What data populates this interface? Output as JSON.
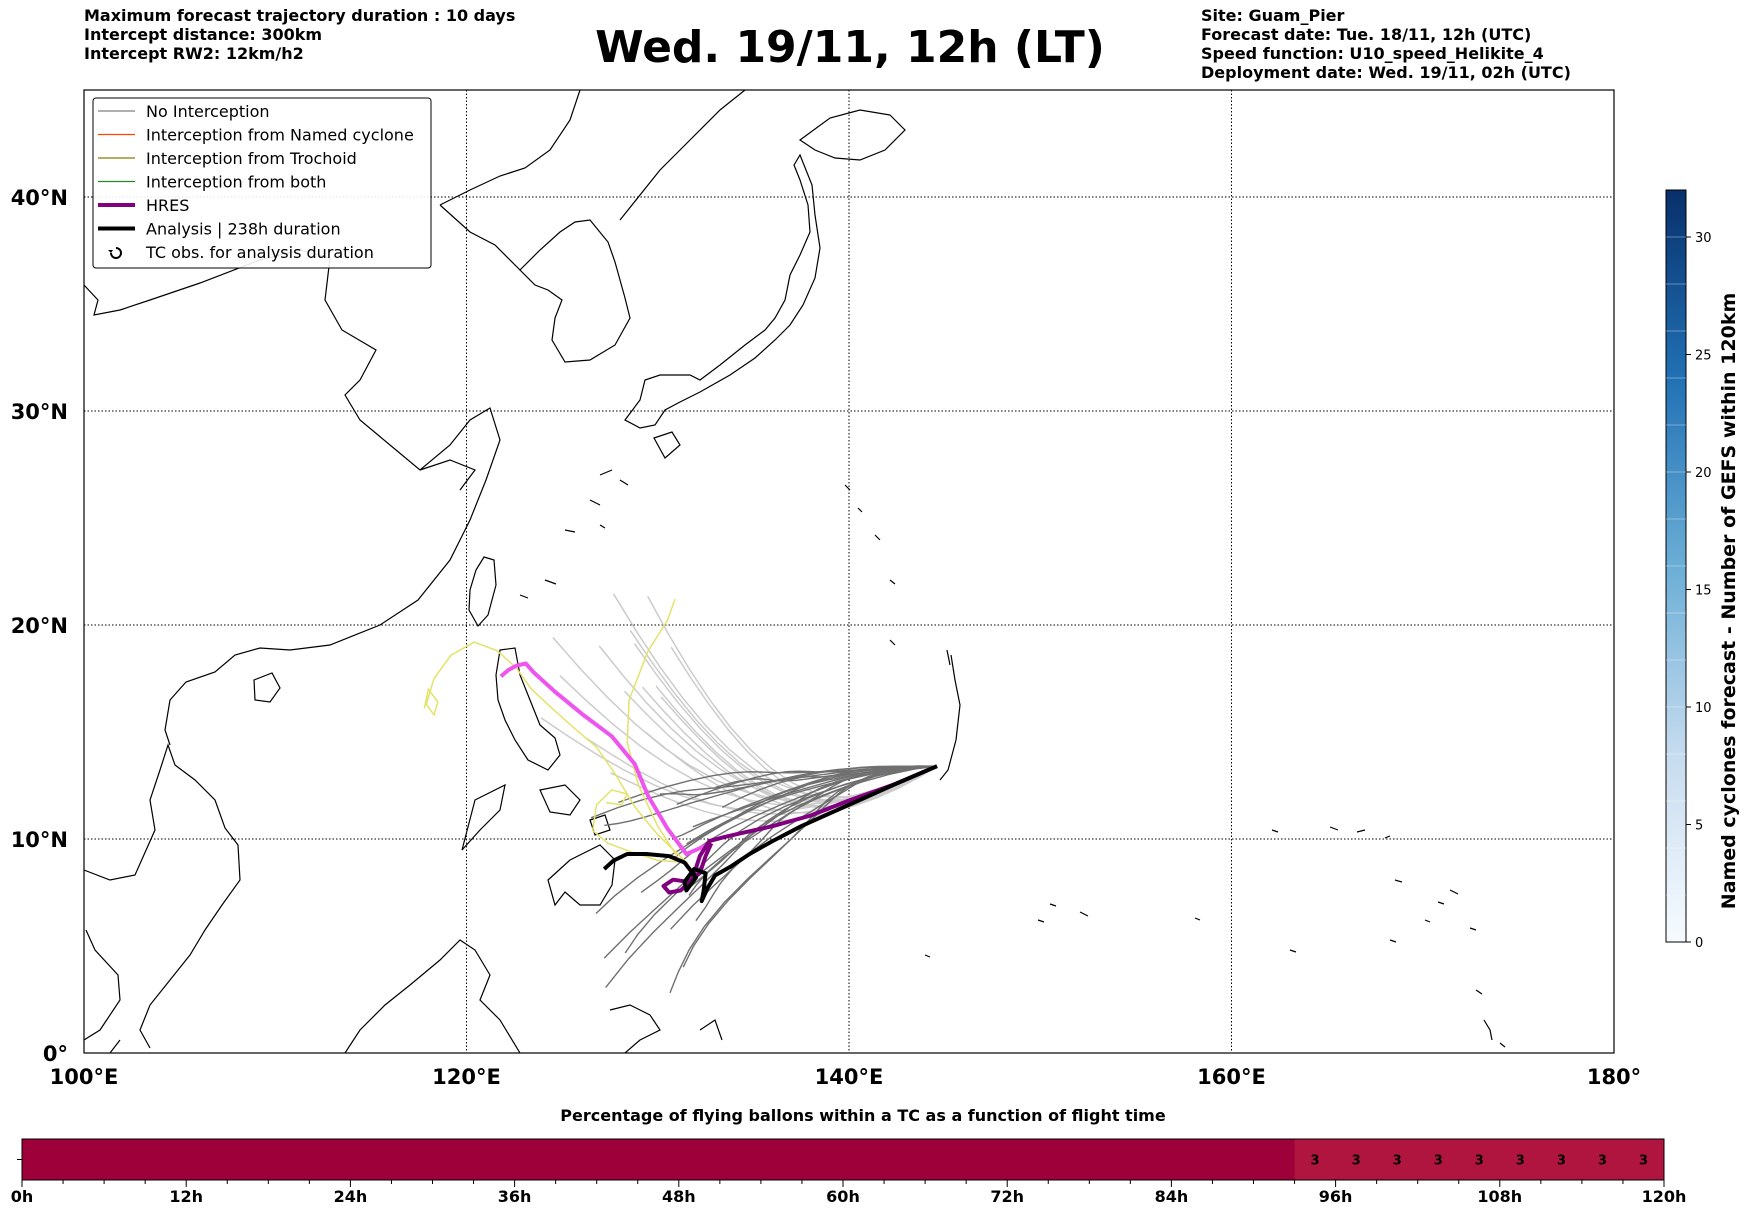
{
  "header": {
    "left": [
      "Maximum forecast trajectory duration : 10 days",
      "Intercept distance: 300km",
      "Intercept RW2: 12km/h2"
    ],
    "title": "Wed. 19/11, 12h (LT)",
    "right": [
      "Site: Guam_Pier",
      "Forecast date: Tue. 18/11, 12h (UTC)",
      "Speed function: U10_speed_Helikite_4",
      "Deployment date: Wed. 19/11, 02h (UTC)"
    ]
  },
  "map": {
    "lon_range": [
      100,
      180
    ],
    "lat_range": [
      0,
      45
    ],
    "lon_ticks": [
      {
        "value": 100,
        "label": "100°E"
      },
      {
        "value": 120,
        "label": "120°E"
      },
      {
        "value": 140,
        "label": "140°E"
      },
      {
        "value": 160,
        "label": "160°E"
      },
      {
        "value": 180,
        "label": "180°"
      }
    ],
    "lat_ticks": [
      {
        "value": 0,
        "label": "0°"
      },
      {
        "value": 10,
        "label": "10°N"
      },
      {
        "value": 20,
        "label": "20°N"
      },
      {
        "value": 30,
        "label": "30°N"
      },
      {
        "value": 40,
        "label": "40°N"
      }
    ],
    "grid": true,
    "legend_position": "top-left"
  },
  "legend": [
    {
      "label": "No Interception",
      "color": "#808080",
      "style": "thin"
    },
    {
      "label": "Interception from Named cyclone",
      "color": "#ff4500",
      "style": "thin"
    },
    {
      "label": "Interception from Trochoid",
      "color": "#808000",
      "style": "thin"
    },
    {
      "label": "Interception from both",
      "color": "#228b22",
      "style": "thin"
    },
    {
      "label": "HRES",
      "color": "#800080",
      "style": "thick"
    },
    {
      "label": "Analysis | 238h duration",
      "color": "#000000",
      "style": "thick"
    },
    {
      "label": "TC obs. for analysis duration",
      "color": "#000000",
      "style": "marker",
      "icon": "cyclone-icon"
    }
  ],
  "chart_data": {
    "type": "line",
    "site": {
      "name": "Guam_Pier",
      "lon": 144.6,
      "lat": 13.4
    },
    "series": [
      {
        "name": "HRES",
        "color_analysis": "#800080",
        "color_forecast": "#ee55ee",
        "analysis": [
          [
            144.6,
            13.4
          ],
          [
            142.5,
            12.6
          ],
          [
            140,
            11.8
          ],
          [
            138,
            11.1
          ],
          [
            136,
            10.6
          ],
          [
            134.5,
            10.3
          ],
          [
            133.5,
            10.1
          ],
          [
            132.7,
            9.9
          ],
          [
            132.2,
            9.2
          ],
          [
            131.8,
            8.1
          ],
          [
            131.2,
            7.6
          ],
          [
            130.6,
            7.5
          ],
          [
            130.3,
            7.8
          ],
          [
            130.8,
            8.1
          ],
          [
            131.6,
            8.0
          ],
          [
            132.2,
            8.4
          ],
          [
            132.5,
            9.2
          ],
          [
            132.8,
            9.8
          ]
        ],
        "forecast": [
          [
            132.8,
            9.8
          ],
          [
            131.5,
            9.3
          ],
          [
            130.5,
            10.5
          ],
          [
            129.5,
            12.0
          ],
          [
            128.8,
            13.5
          ],
          [
            127.6,
            14.8
          ],
          [
            126.1,
            15.8
          ],
          [
            124.6,
            16.9
          ],
          [
            123.5,
            17.8
          ],
          [
            123.1,
            18.2
          ],
          [
            122.6,
            18.1
          ],
          [
            122.2,
            17.9
          ],
          [
            121.8,
            17.6
          ]
        ]
      },
      {
        "name": "Analysis | 238h duration",
        "color": "#000000",
        "points": [
          [
            144.6,
            13.4
          ],
          [
            142.5,
            12.6
          ],
          [
            140.5,
            11.8
          ],
          [
            139,
            11.2
          ],
          [
            137.5,
            10.6
          ],
          [
            136,
            9.9
          ],
          [
            134.8,
            9.3
          ],
          [
            133.8,
            8.7
          ],
          [
            133.0,
            8.3
          ],
          [
            132.6,
            7.7
          ],
          [
            132.3,
            7.1
          ],
          [
            132.4,
            7.6
          ],
          [
            132.5,
            8.4
          ],
          [
            131.9,
            8.6
          ],
          [
            131.4,
            8.0
          ],
          [
            131.5,
            7.6
          ],
          [
            132.0,
            8.2
          ],
          [
            131.4,
            8.9
          ],
          [
            130.6,
            9.2
          ],
          [
            129.4,
            9.3
          ],
          [
            128.4,
            9.3
          ],
          [
            127.7,
            9.0
          ],
          [
            127.2,
            8.6
          ]
        ]
      }
    ],
    "trochoid_tracks": [
      [
        [
          131.4,
          9.0
        ],
        [
          130.0,
          10.2
        ],
        [
          128.8,
          11.5
        ],
        [
          127.8,
          13.0
        ],
        [
          126.8,
          14.3
        ],
        [
          125.6,
          15.2
        ],
        [
          124.6,
          16.0
        ],
        [
          123.4,
          17.0
        ],
        [
          122.6,
          18.0
        ],
        [
          121.6,
          18.8
        ],
        [
          120.4,
          19.2
        ],
        [
          119.2,
          18.6
        ],
        [
          118.3,
          17.5
        ],
        [
          117.9,
          16.3
        ],
        [
          118.3,
          15.8
        ],
        [
          118.5,
          16.4
        ],
        [
          118.0,
          17.0
        ],
        [
          117.8,
          16.1
        ]
      ],
      [
        [
          131.0,
          9.2
        ],
        [
          130.0,
          10.6
        ],
        [
          129.0,
          12.5
        ],
        [
          128.4,
          14.5
        ],
        [
          128.5,
          16.5
        ],
        [
          129.5,
          18.8
        ],
        [
          130.5,
          20.2
        ],
        [
          130.9,
          21.2
        ]
      ],
      [
        [
          131.6,
          8.9
        ],
        [
          130.0,
          9.0
        ],
        [
          128.6,
          9.4
        ],
        [
          127.4,
          9.8
        ],
        [
          126.6,
          10.4
        ],
        [
          126.8,
          11.6
        ],
        [
          127.6,
          12.3
        ],
        [
          128.4,
          12.1
        ],
        [
          128.1,
          11.6
        ],
        [
          127.3,
          11.7
        ]
      ]
    ],
    "interception_summary": {
      "type": "bar",
      "x_unit": "h",
      "x_range": [
        0,
        120
      ],
      "value_from_h": 93,
      "values": [
        3,
        3,
        3,
        3,
        3,
        3,
        3,
        3,
        3
      ]
    }
  },
  "colorbar": {
    "label": "Named cyclones forecast - Number of GEFS within 120km",
    "ticks": [
      0,
      5,
      10,
      15,
      20,
      25,
      30
    ],
    "range": [
      0,
      32
    ],
    "colormap": "Blues"
  },
  "progress_bar": {
    "title": "Percentage of flying ballons within a TC as a function of flight time",
    "ticks": [
      "0h",
      "12h",
      "24h",
      "36h",
      "48h",
      "60h",
      "72h",
      "84h",
      "96h",
      "108h",
      "120h"
    ],
    "y_tick": "-",
    "values": [
      "3",
      "3",
      "3",
      "3",
      "3",
      "3",
      "3",
      "3",
      "3"
    ],
    "color_main": "#9e0039",
    "color_values": "#b0153f"
  }
}
